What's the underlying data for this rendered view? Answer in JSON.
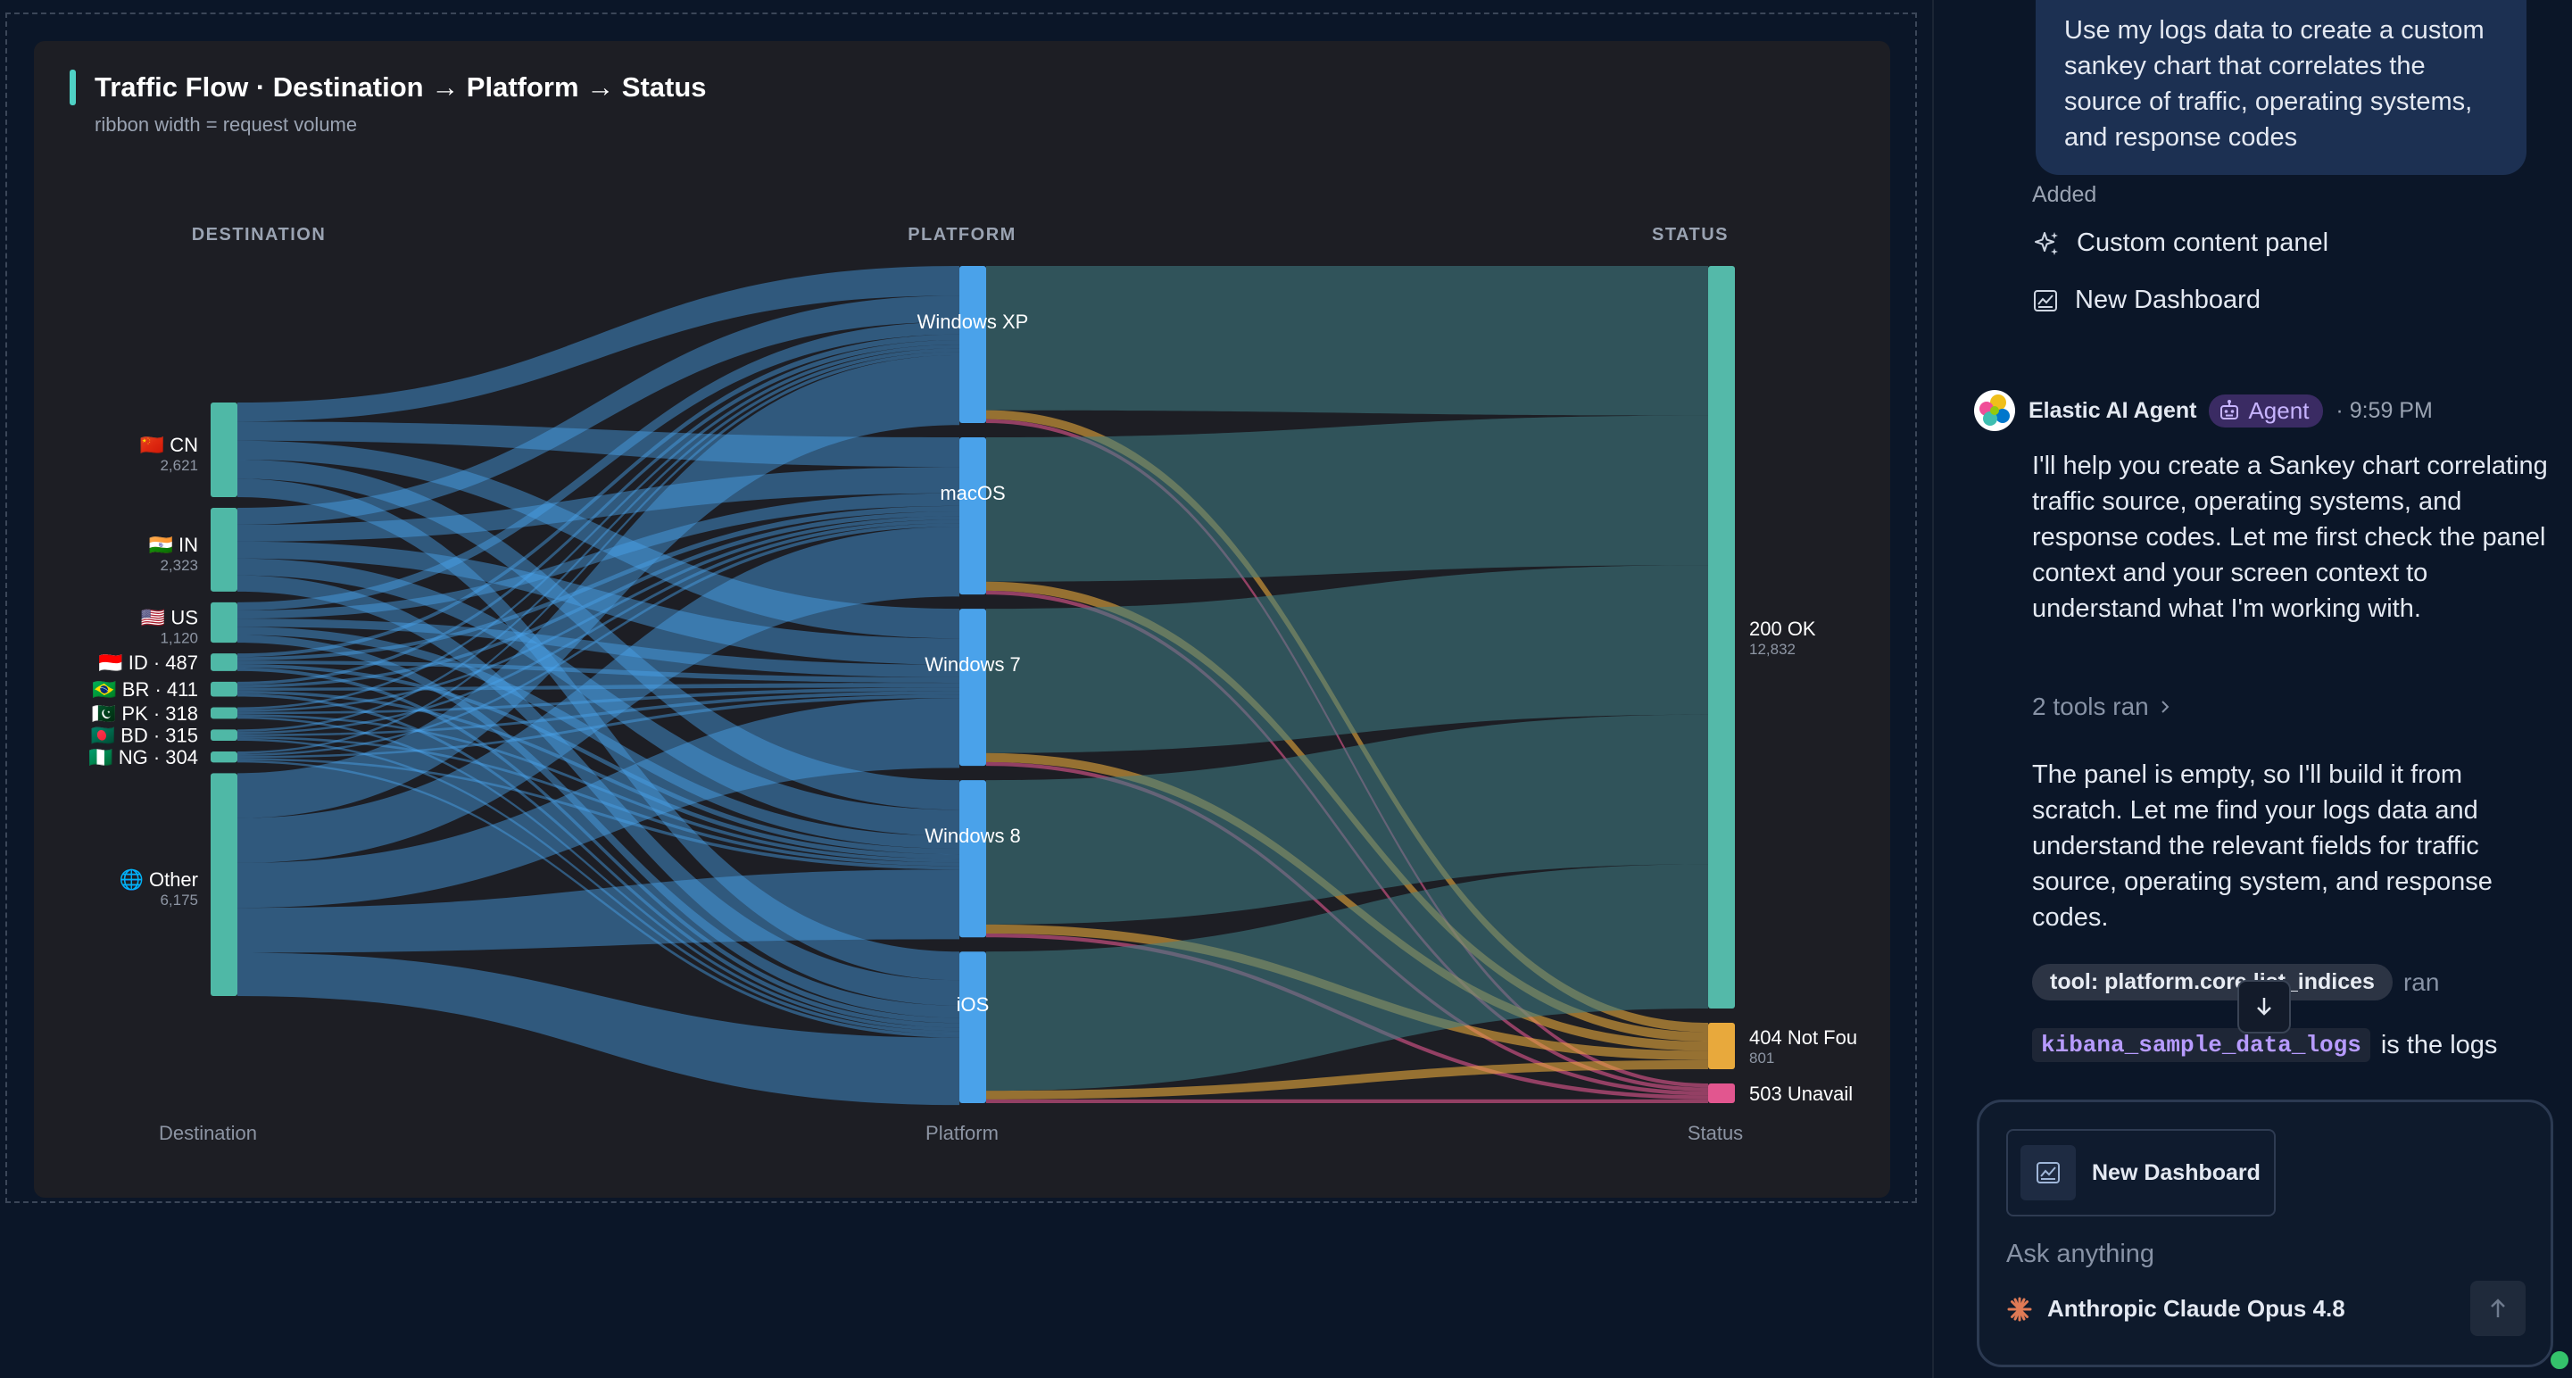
{
  "chart": {
    "title": "Traffic Flow · Destination → Platform → Status",
    "subtitle": "ribbon width = request volume",
    "column_headers": [
      "DESTINATION",
      "PLATFORM",
      "STATUS"
    ],
    "column_footers": [
      "Destination",
      "Platform",
      "Status"
    ]
  },
  "chart_data": {
    "type": "sankey",
    "title": "Traffic Flow · Destination → Platform → Status",
    "subtitle": "ribbon width = request volume",
    "colors": {
      "destination": "#4fb8a6",
      "platform": "#4aa2ea",
      "ok": "#54b9a9",
      "not_found": "#e8a93c",
      "unavailable": "#e2568f"
    },
    "destination": [
      {
        "label": "🇨🇳 CN",
        "value": "2,621",
        "total": 2621
      },
      {
        "label": "🇮🇳 IN",
        "value": "2,323",
        "total": 2323
      },
      {
        "label": "🇺🇸 US",
        "value": "1,120",
        "total": 1120
      },
      {
        "label": "🇮🇩 ID · 487",
        "value": "",
        "total": 487
      },
      {
        "label": "🇧🇷 BR · 411",
        "value": "",
        "total": 411
      },
      {
        "label": "🇵🇰 PK · 318",
        "value": "",
        "total": 318
      },
      {
        "label": "🇧🇩 BD · 315",
        "value": "",
        "total": 315
      },
      {
        "label": "🇳🇬 NG · 304",
        "value": "",
        "total": 304
      },
      {
        "label": "🌐 Other",
        "value": "6,175",
        "total": 6175
      }
    ],
    "platform": [
      {
        "label": "Windows XP",
        "total": 2800
      },
      {
        "label": "macOS",
        "total": 2800
      },
      {
        "label": "Windows 7",
        "total": 2800
      },
      {
        "label": "Windows 8",
        "total": 2800
      },
      {
        "label": "iOS",
        "total": 2700
      }
    ],
    "status": [
      {
        "label": "200 OK",
        "value": "12,832",
        "total": 12832
      },
      {
        "label": "404 Not Fou",
        "value": "801",
        "total": 801
      },
      {
        "label": "503 Unavail",
        "value": "",
        "total": 340
      }
    ]
  },
  "chat": {
    "user_message": "Use my logs data to create a custom sankey chart that correlates the source of traffic, operating systems, and response codes",
    "added_label": "Added",
    "added_items": [
      "Custom content panel",
      "New Dashboard"
    ],
    "agent_name": "Elastic AI Agent",
    "agent_badge": "Agent",
    "agent_time": "· 9:59 PM",
    "para1": "I'll help you create a Sankey chart correlating traffic source, operating systems, and response codes. Let me first check the panel context and your screen context to understand what I'm working with.",
    "tools_ran": "2 tools ran",
    "para2": "The panel is empty, so I'll build it from scratch. Let me find your logs data and understand the relevant fields for traffic source, operating system, and response codes.",
    "tool_pill": "tool: platform.core.list_indices",
    "tool_ran_word": "ran",
    "logs_code": "kibana_sample_data_logs",
    "logs_after": "is the logs",
    "attachment_label": "New Dashboard",
    "input_placeholder": "Ask anything",
    "model_name": "Anthropic Claude Opus 4.8"
  }
}
